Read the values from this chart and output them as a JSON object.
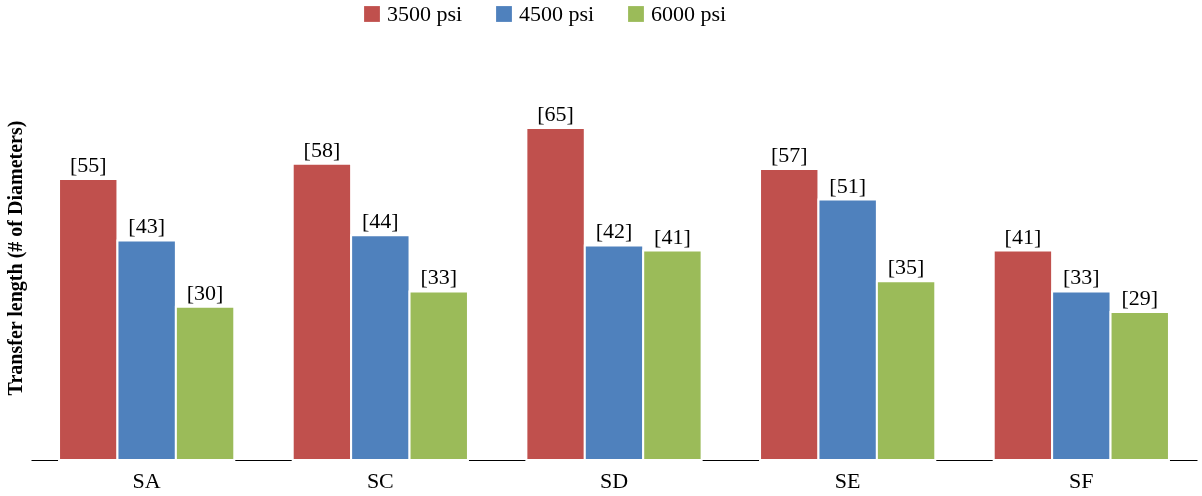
{
  "chart_data": {
    "type": "bar",
    "ylabel": "Transfer length (# of Diameters)",
    "categories": [
      "SA",
      "SC",
      "SD",
      "SE",
      "SF"
    ],
    "series": [
      {
        "name": "3500 psi",
        "color": "#c0504d",
        "values": [
          55,
          58,
          65,
          57,
          41
        ],
        "value_labels": [
          "[55]",
          "[58]",
          "[65]",
          "[57]",
          "[41]"
        ]
      },
      {
        "name": "4500 psi",
        "color": "#4f81bd",
        "values": [
          43,
          44,
          42,
          51,
          33
        ],
        "value_labels": [
          "[43]",
          "[44]",
          "[42]",
          "[51]",
          "[33]"
        ]
      },
      {
        "name": "6000 psi",
        "color": "#9bbb59",
        "values": [
          30,
          33,
          41,
          35,
          29
        ],
        "value_labels": [
          "[30]",
          "[33]",
          "[41]",
          "[35]",
          "[29]"
        ]
      }
    ],
    "legend": "top"
  }
}
